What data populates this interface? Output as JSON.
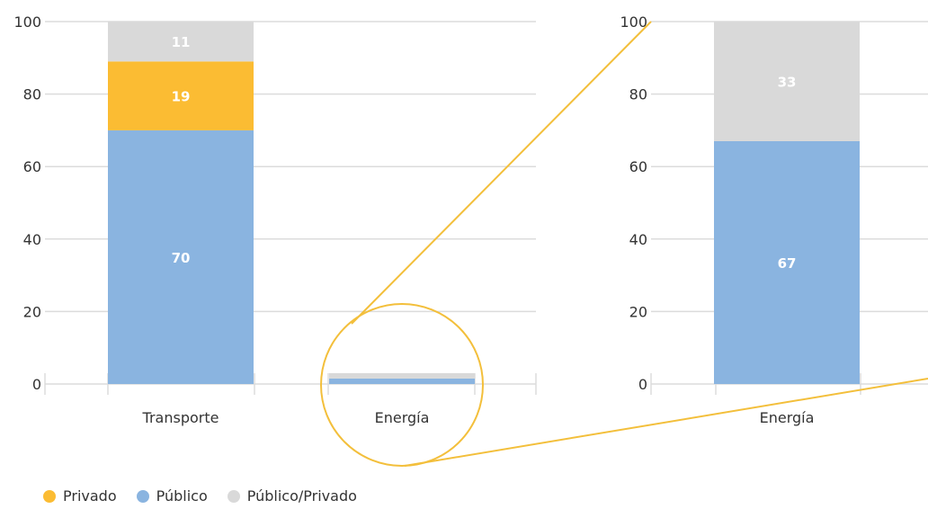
{
  "colors": {
    "privado": "#fbbc33",
    "publico": "#8ab4e0",
    "publico_privado": "#d9d9d9",
    "grid": "#dcdcdc",
    "zoom": "#f3bf3b"
  },
  "legend": [
    {
      "name": "Privado",
      "color": "#fbbc33"
    },
    {
      "name": "Público",
      "color": "#8ab4e0"
    },
    {
      "name": "Público/Privado",
      "color": "#d9d9d9"
    }
  ],
  "chart_data": [
    {
      "type": "bar",
      "stacked": true,
      "categories": [
        "Transporte",
        "Energía"
      ],
      "ylim": [
        0,
        100
      ],
      "yticks": [
        0,
        20,
        40,
        60,
        80,
        100
      ],
      "grid": true,
      "legend_position": "bottom-left",
      "series": [
        {
          "name": "Público",
          "values": [
            70,
            1.5
          ],
          "labels": [
            "70",
            ""
          ]
        },
        {
          "name": "Privado",
          "values": [
            19,
            0
          ],
          "labels": [
            "19",
            ""
          ]
        },
        {
          "name": "Público/Privado",
          "values": [
            11,
            1.5
          ],
          "labels": [
            "11",
            ""
          ]
        }
      ]
    },
    {
      "type": "bar",
      "stacked": true,
      "categories": [
        "Energía"
      ],
      "ylim": [
        0,
        100
      ],
      "yticks": [
        0,
        20,
        40,
        60,
        80,
        100
      ],
      "grid": true,
      "series": [
        {
          "name": "Público",
          "values": [
            67
          ],
          "labels": [
            "67"
          ]
        },
        {
          "name": "Privado",
          "values": [
            0
          ],
          "labels": [
            ""
          ]
        },
        {
          "name": "Público/Privado",
          "values": [
            33
          ],
          "labels": [
            "33"
          ]
        }
      ]
    }
  ]
}
